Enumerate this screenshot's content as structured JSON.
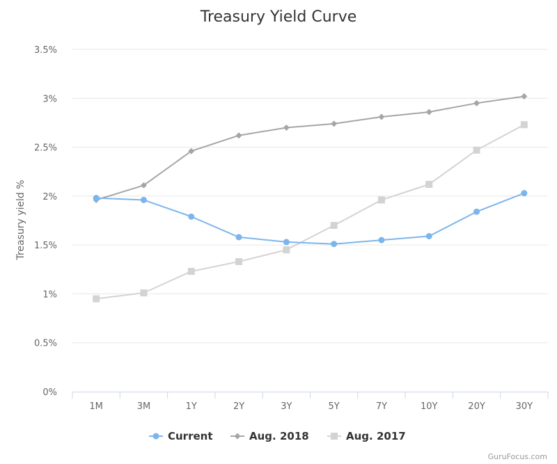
{
  "chart_data": {
    "type": "line",
    "title": "Treasury Yield Curve",
    "xlabel": "",
    "ylabel": "Treasury yield %",
    "categories": [
      "1M",
      "3M",
      "1Y",
      "2Y",
      "3Y",
      "5Y",
      "7Y",
      "10Y",
      "20Y",
      "30Y"
    ],
    "ylim": [
      0,
      3.5
    ],
    "yticks": [
      {
        "value": 0,
        "label": "0%"
      },
      {
        "value": 0.5,
        "label": "0.5%"
      },
      {
        "value": 1,
        "label": "1%"
      },
      {
        "value": 1.5,
        "label": "1.5%"
      },
      {
        "value": 2,
        "label": "2%"
      },
      {
        "value": 2.5,
        "label": "2.5%"
      },
      {
        "value": 3,
        "label": "3%"
      },
      {
        "value": 3.5,
        "label": "3.5%"
      }
    ],
    "grid": true,
    "legend_position": "bottom-center",
    "series": [
      {
        "name": "Current",
        "color": "#7cb5ec",
        "marker": "circle",
        "values": [
          1.98,
          1.96,
          1.79,
          1.58,
          1.53,
          1.51,
          1.55,
          1.59,
          1.84,
          2.03
        ]
      },
      {
        "name": "Aug. 2018",
        "color": "#a5a5a5",
        "marker": "diamond",
        "values": [
          1.96,
          2.11,
          2.46,
          2.62,
          2.7,
          2.74,
          2.81,
          2.86,
          2.95,
          3.02
        ]
      },
      {
        "name": "Aug. 2017",
        "color": "#d3d3d3",
        "marker": "square",
        "values": [
          0.95,
          1.01,
          1.23,
          1.33,
          1.45,
          1.7,
          1.96,
          2.12,
          2.47,
          2.73
        ]
      }
    ]
  },
  "credit": "GuruFocus.com"
}
